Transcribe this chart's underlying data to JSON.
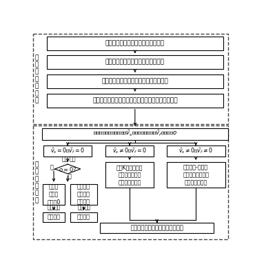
{
  "bg_color": "#ffffff",
  "top_section_label": "基\n于\n样\n本\n数\n据\n库",
  "bottom_section_label": "基\n于\n当\n前\n数\n据",
  "top_boxes": [
    "计算样本库中的浮动车样本量可靠度",
    "计算固定检测器的平均速度调整参数",
    "计算样本库中各时段的历史空间平均速度",
    "根据空间平均速度与对应的交通状态训练支持向量机"
  ],
  "calc_box_text": "计算固定检测器平均速度$\\bar{v}_s$、浮动车平均速度$\\bar{v}_f$和占有率$o$",
  "cond1_line1": "$\\bar{v}_s=0$，$\\bar{v}_f=0$",
  "cond2_line1": "$\\bar{v}_s\\neq0$，$\\bar{v}_f=0$",
  "cond3_line1": "$\\bar{v}_s\\neq0$，$\\bar{v}_f\\neq0$",
  "diamond_text": "$o=0?$",
  "no_label": "否",
  "yes_label": "是",
  "direct_judge": "直接  判断",
  "box_l1_text": "路段空\n间平均\n速度取0",
  "box_l2_text": "路段空间\n平均速度\n取限速值",
  "direct_judge2": "直接  判断",
  "direct_judge3": "直接  判断",
  "final_left1": "完全拥堵",
  "final_left2": "完全畅通",
  "box_mid_text": "基于K近邻非参数\n回归法估计路段\n的空间平均速度",
  "box_right_text": "基于数据-状态关\n联分析法估计路段\n的空间平均速度",
  "final_box_text": "基于支持向量机判别路段交通状态"
}
